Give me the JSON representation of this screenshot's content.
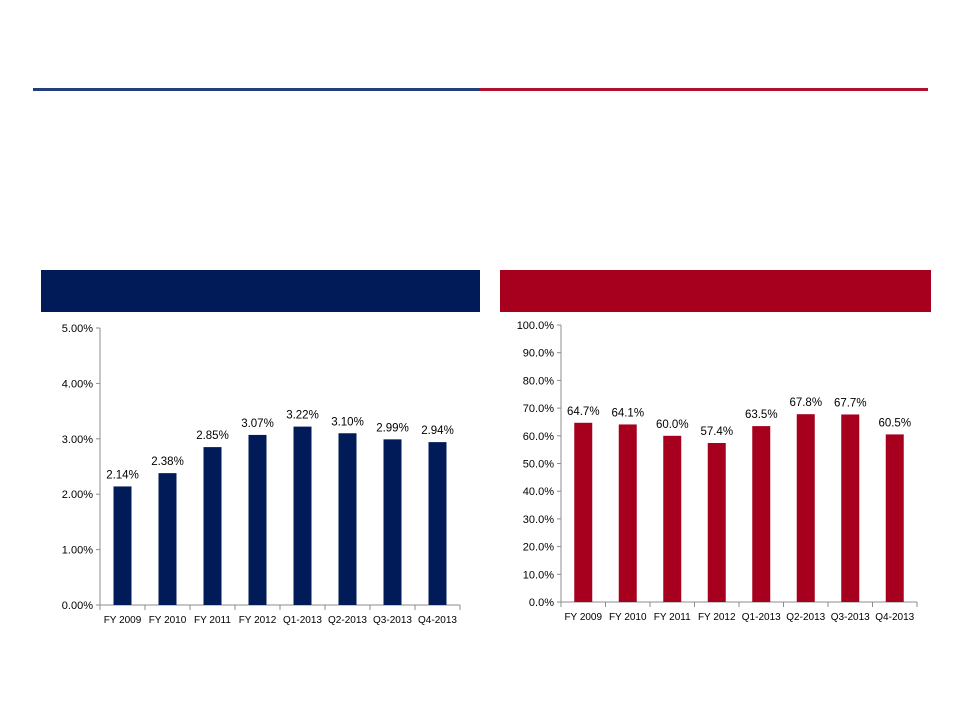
{
  "colors": {
    "navy": "#001b57",
    "crimson": "#a6001e",
    "rule_blue": "#233e7a",
    "rule_red": "#b0102b",
    "axis": "#8c8c8c"
  },
  "chart_data": [
    {
      "type": "bar",
      "categories": [
        "FY 2009",
        "FY 2010",
        "FY 2011",
        "FY 2012",
        "Q1-2013",
        "Q2-2013",
        "Q3-2013",
        "Q4-2013"
      ],
      "values": [
        2.14,
        2.38,
        2.85,
        3.07,
        3.22,
        3.1,
        2.99,
        2.94
      ],
      "data_labels": [
        "2.14%",
        "2.38%",
        "2.85%",
        "3.07%",
        "3.22%",
        "3.10%",
        "2.99%",
        "2.94%"
      ],
      "y_ticks": [
        "0.00%",
        "1.00%",
        "2.00%",
        "3.00%",
        "4.00%",
        "5.00%"
      ],
      "ylim": [
        0,
        5
      ],
      "y_step": 1,
      "color": "#001b57",
      "title": "",
      "xlabel": "",
      "ylabel": "",
      "grid": false
    },
    {
      "type": "bar",
      "categories": [
        "FY 2009",
        "FY 2010",
        "FY 2011",
        "FY 2012",
        "Q1-2013",
        "Q2-2013",
        "Q3-2013",
        "Q4-2013"
      ],
      "values": [
        64.7,
        64.1,
        60.0,
        57.4,
        63.5,
        67.8,
        67.7,
        60.5
      ],
      "data_labels": [
        "64.7%",
        "64.1%",
        "60.0%",
        "57.4%",
        "63.5%",
        "67.8%",
        "67.7%",
        "60.5%"
      ],
      "y_ticks": [
        "0.0%",
        "10.0%",
        "20.0%",
        "30.0%",
        "40.0%",
        "50.0%",
        "60.0%",
        "70.0%",
        "80.0%",
        "90.0%",
        "100.0%"
      ],
      "ylim": [
        0,
        100
      ],
      "y_step": 10,
      "color": "#a6001e",
      "title": "",
      "xlabel": "",
      "ylabel": "",
      "grid": false
    }
  ]
}
